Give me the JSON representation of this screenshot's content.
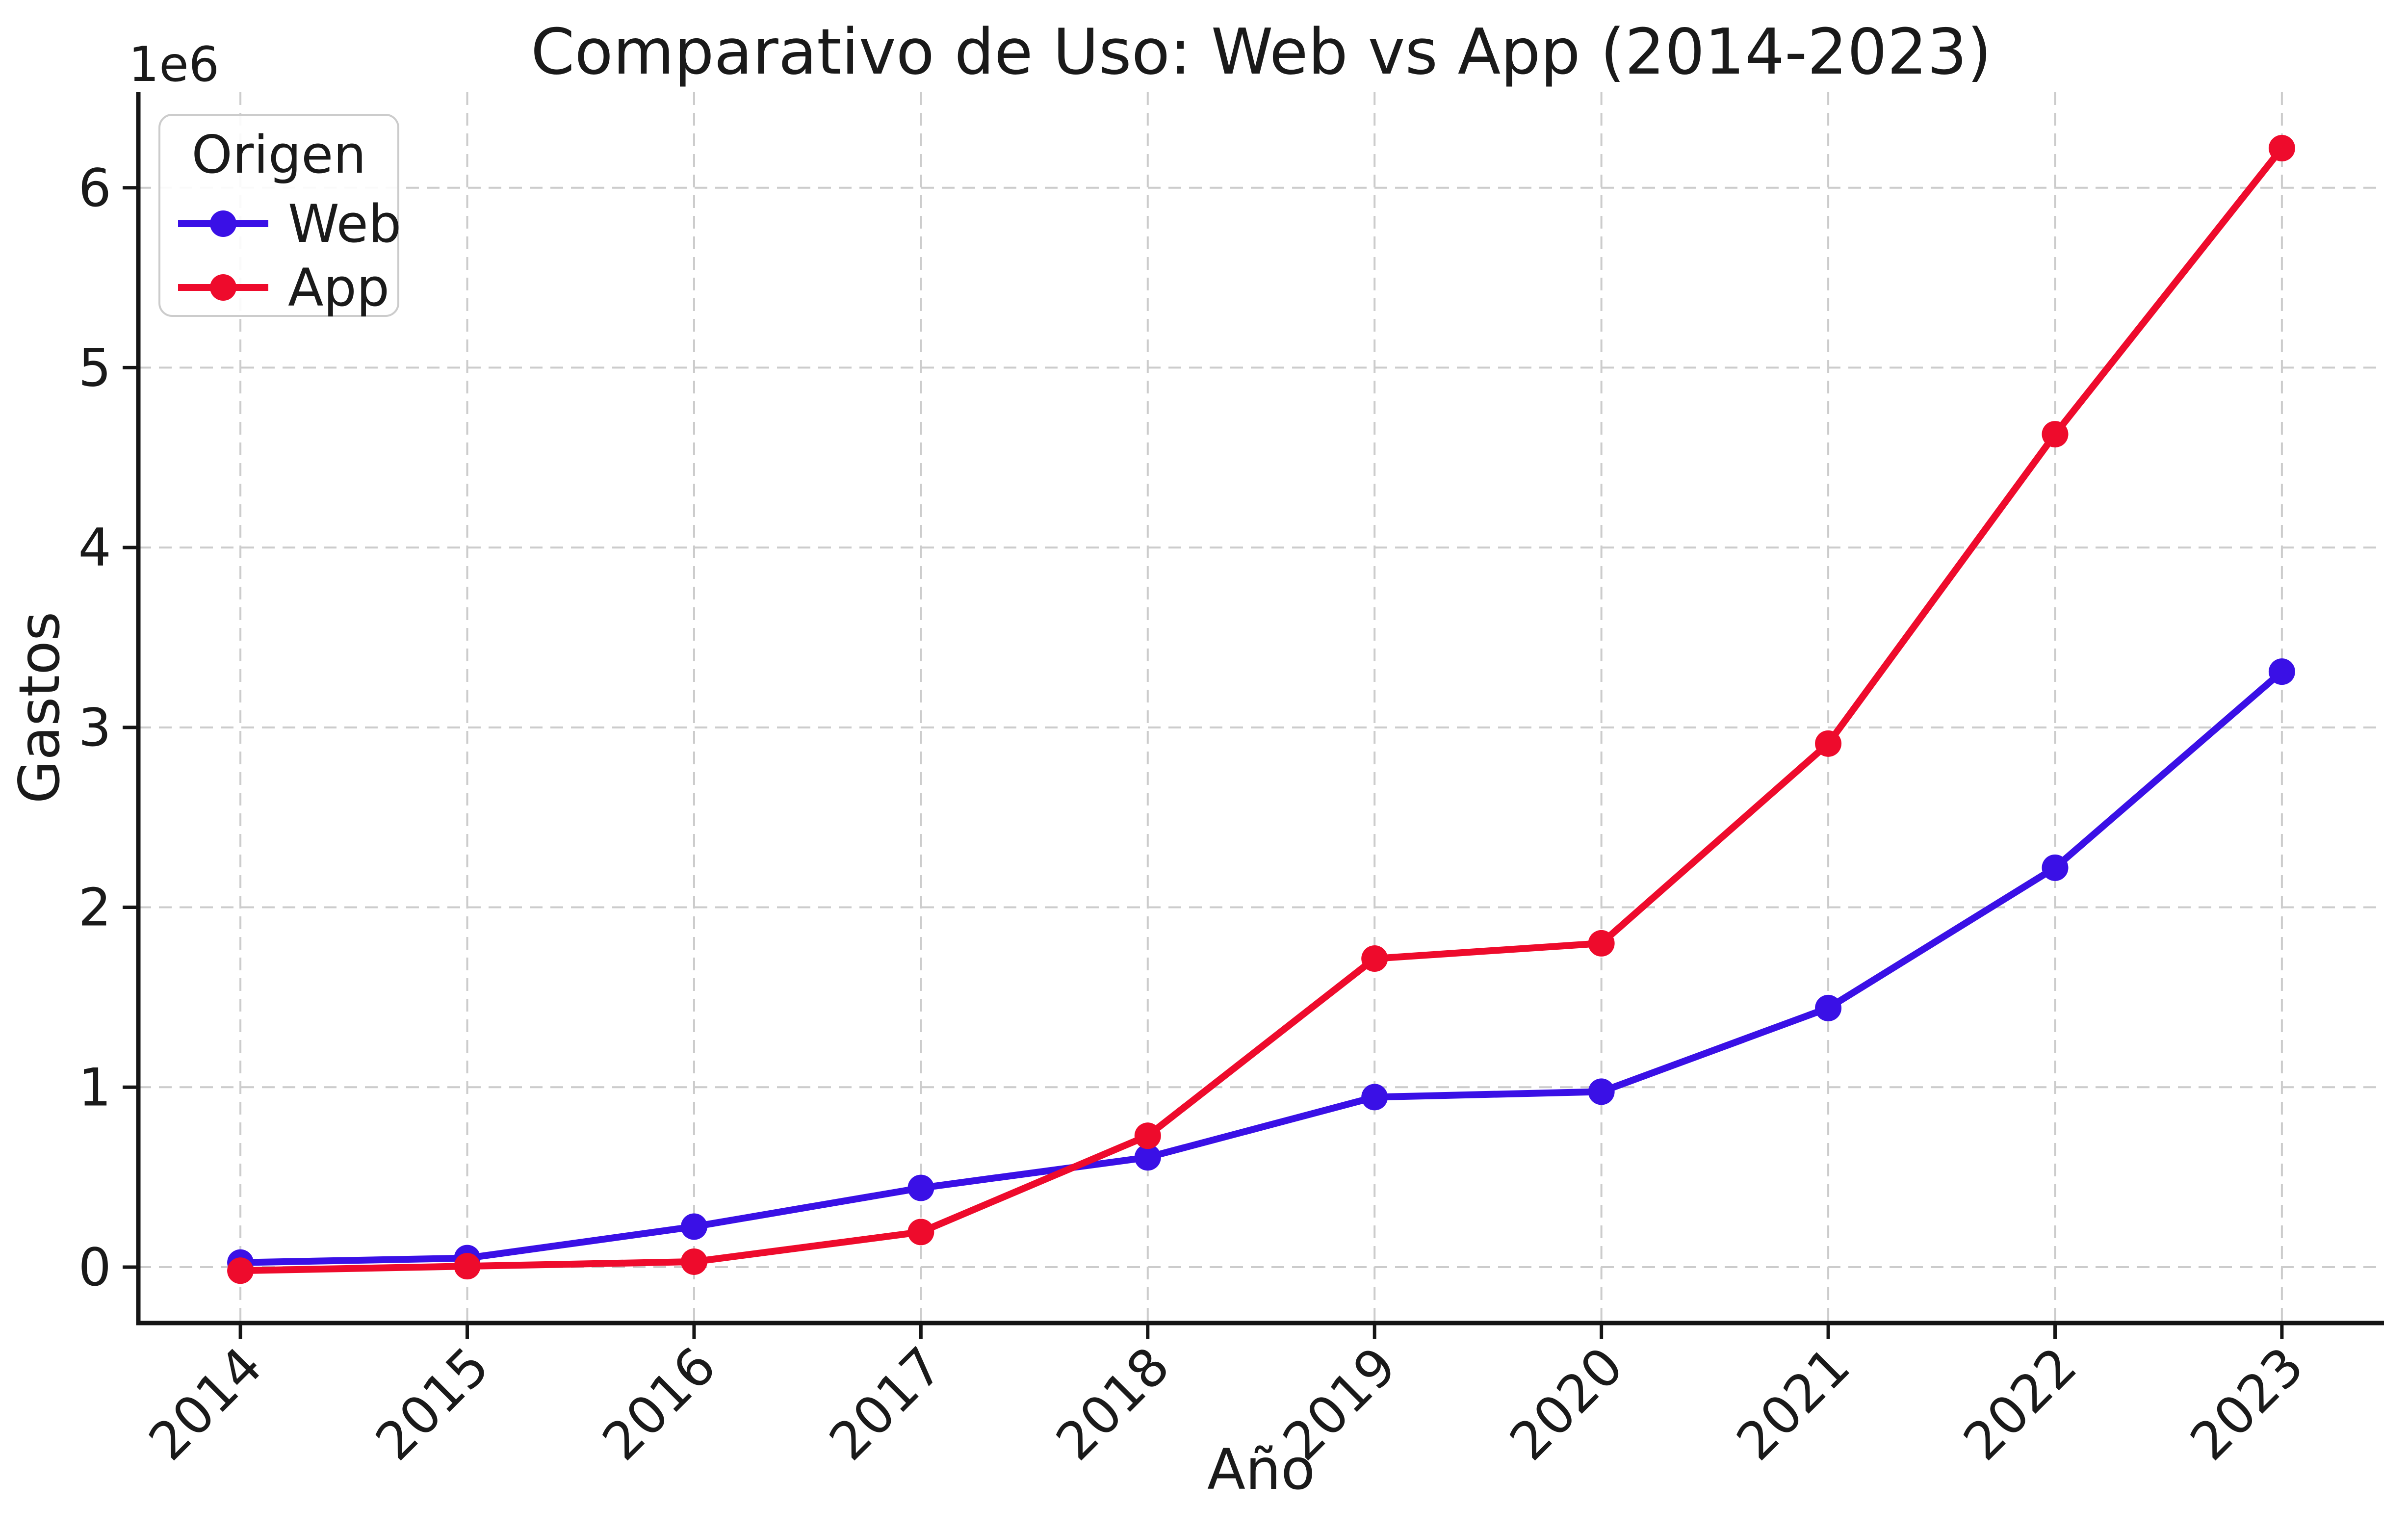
{
  "chart_data": {
    "type": "line",
    "title": "Comparativo de Uso: Web vs App (2014-2023)",
    "xlabel": "Año",
    "ylabel": "Gastos",
    "y_offset_label": "1e6",
    "x": [
      2014,
      2015,
      2016,
      2017,
      2018,
      2019,
      2020,
      2021,
      2022,
      2023
    ],
    "xtick_labels": [
      "2014",
      "2015",
      "2016",
      "2017",
      "2018",
      "2019",
      "2020",
      "2021",
      "2022",
      "2023"
    ],
    "yticks": [
      0,
      1000000,
      2000000,
      3000000,
      4000000,
      5000000,
      6000000
    ],
    "ytick_labels": [
      "0",
      "1",
      "2",
      "3",
      "4",
      "5",
      "6"
    ],
    "xlim": [
      2013.55,
      2023.45
    ],
    "ylim": [
      -311000,
      6531000
    ],
    "series": [
      {
        "name": "Web",
        "color": "#3a10e6",
        "values": [
          25000,
          50000,
          225000,
          440000,
          610000,
          945000,
          975000,
          1440000,
          2220000,
          3310000
        ]
      },
      {
        "name": "App",
        "color": "#ee0b2c",
        "values": [
          -20000,
          5000,
          30000,
          195000,
          730000,
          1715000,
          1800000,
          2910000,
          4630000,
          6220000
        ]
      }
    ],
    "legend": {
      "title": "Origen",
      "position": "upper left"
    },
    "grid": {
      "visible": true,
      "style": "dashed",
      "color": "#cccccc"
    },
    "colors": {
      "background": "#ffffff",
      "spine": "#151515",
      "tick_text": "#1a1a1a",
      "title_text": "#262626",
      "legend_border": "#cccccc"
    }
  }
}
